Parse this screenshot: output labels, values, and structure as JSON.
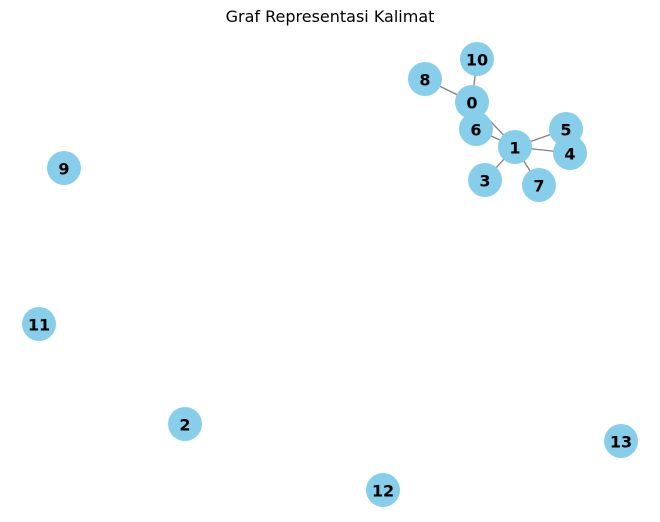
{
  "title": "Graf Representasi Kalimat",
  "node_color": "#87ceeb",
  "edge_color": "#808080",
  "nodes": [
    {
      "id": "0",
      "label": "0"
    },
    {
      "id": "1",
      "label": "1"
    },
    {
      "id": "2",
      "label": "2"
    },
    {
      "id": "3",
      "label": "3"
    },
    {
      "id": "4",
      "label": "4"
    },
    {
      "id": "5",
      "label": "5"
    },
    {
      "id": "6",
      "label": "6"
    },
    {
      "id": "7",
      "label": "7"
    },
    {
      "id": "8",
      "label": "8"
    },
    {
      "id": "9",
      "label": "9"
    },
    {
      "id": "10",
      "label": "10"
    },
    {
      "id": "11",
      "label": "11"
    },
    {
      "id": "12",
      "label": "12"
    },
    {
      "id": "13",
      "label": "13"
    }
  ],
  "edges": [
    [
      "0",
      "10"
    ],
    [
      "0",
      "8"
    ],
    [
      "0",
      "1"
    ],
    [
      "6",
      "1"
    ],
    [
      "1",
      "5"
    ],
    [
      "1",
      "4"
    ],
    [
      "1",
      "3"
    ],
    [
      "1",
      "7"
    ]
  ]
}
